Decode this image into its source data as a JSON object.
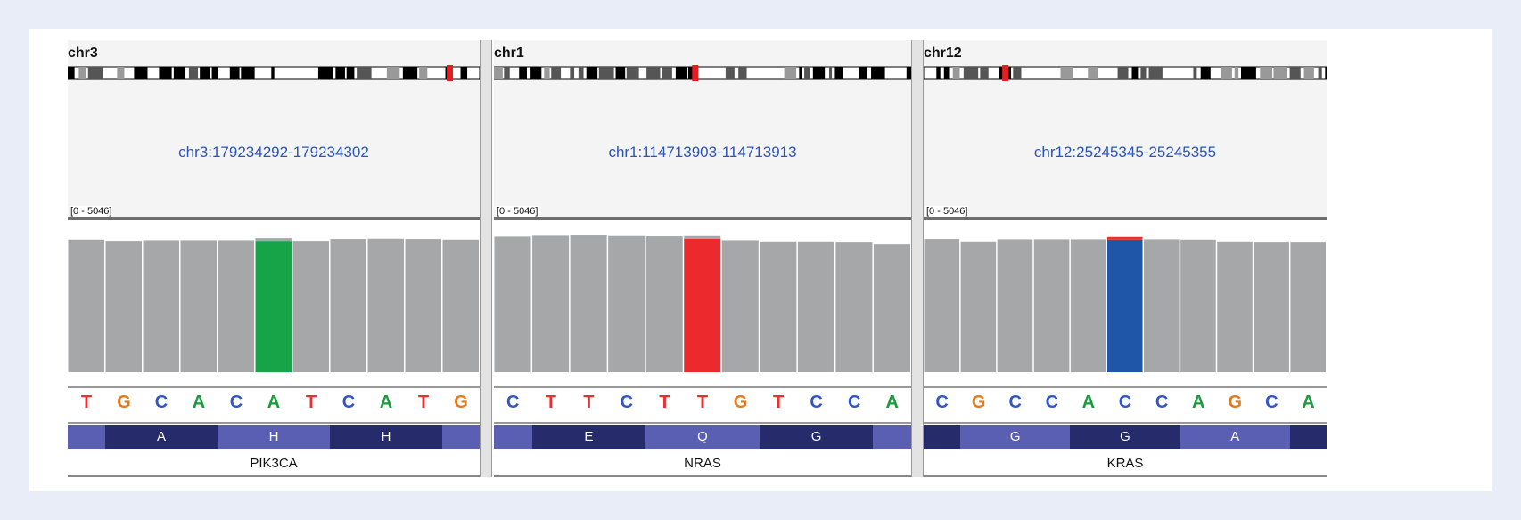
{
  "colors": {
    "coverage_gray": "#a5a7a8",
    "coverage_gap": "#ffffff",
    "base_A": "#1a9c3c",
    "base_C": "#2f55c8",
    "base_G": "#e07b20",
    "base_T": "#e8302e",
    "aa_dark": "#262b6b",
    "aa_light": "#5a5fb4",
    "locus_text": "#2a55b8",
    "centromere": "#e02020"
  },
  "panels": [
    {
      "chrom": "chr3",
      "locus": "chr3:179234292-179234302",
      "data_range": "[0 - 5046]",
      "gene": "PIK3CA",
      "bases": [
        "T",
        "G",
        "C",
        "A",
        "C",
        "A",
        "T",
        "C",
        "A",
        "T",
        "G"
      ],
      "amino_acids": [
        {
          "label": "",
          "tone": "light"
        },
        {
          "label": "A",
          "tone": "dark"
        },
        {
          "label": "H",
          "tone": "light"
        },
        {
          "label": "H",
          "tone": "dark"
        },
        {
          "label": "",
          "tone": "light"
        }
      ],
      "coverage": [
        4400,
        4360,
        4380,
        4380,
        4380,
        4360,
        4360,
        4420,
        4430,
        4420,
        4400
      ],
      "variant_index": 5,
      "variant_color": "#17a347"
    },
    {
      "chrom": "chr1",
      "locus": "chr1:114713903-114713913",
      "data_range": "[0 - 5046]",
      "gene": "NRAS",
      "bases": [
        "C",
        "T",
        "T",
        "C",
        "T",
        "T",
        "G",
        "T",
        "C",
        "C",
        "A"
      ],
      "amino_acids": [
        {
          "label": "",
          "tone": "light"
        },
        {
          "label": "E",
          "tone": "dark"
        },
        {
          "label": "Q",
          "tone": "light"
        },
        {
          "label": "G",
          "tone": "dark"
        },
        {
          "label": "",
          "tone": "light"
        }
      ],
      "coverage": [
        4500,
        4530,
        4540,
        4520,
        4510,
        4430,
        4380,
        4340,
        4340,
        4330,
        4240
      ],
      "variant_index": 5,
      "variant_color": "#ec2a2d"
    },
    {
      "chrom": "chr12",
      "locus": "chr12:25245345-25245355",
      "data_range": "[0 - 5046]",
      "gene": "KRAS",
      "bases": [
        "C",
        "G",
        "C",
        "C",
        "A",
        "C",
        "C",
        "A",
        "G",
        "C",
        "A"
      ],
      "amino_acids": [
        {
          "label": "",
          "tone": "dark"
        },
        {
          "label": "G",
          "tone": "light"
        },
        {
          "label": "G",
          "tone": "dark"
        },
        {
          "label": "A",
          "tone": "light"
        },
        {
          "label": "",
          "tone": "dark"
        }
      ],
      "coverage": [
        4420,
        4340,
        4410,
        4410,
        4410,
        4400,
        4410,
        4400,
        4340,
        4330,
        4330
      ],
      "variant_index": 5,
      "variant_color": "#1f56a8"
    }
  ]
}
